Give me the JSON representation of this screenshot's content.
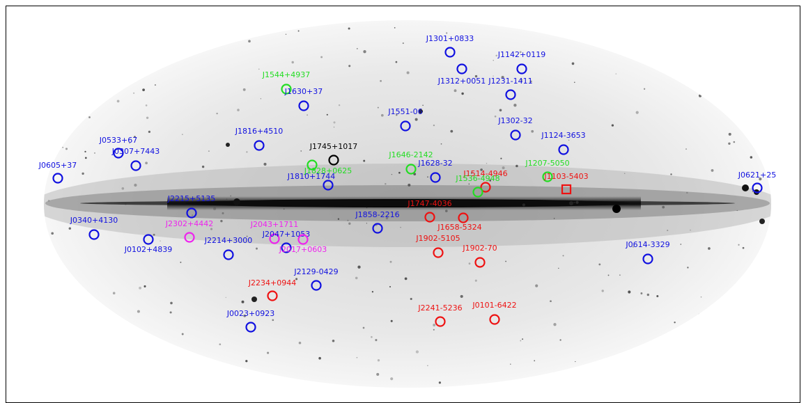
{
  "image": {
    "projection": "aitoff-allsky",
    "description_colors": {
      "blue": "#1010e0",
      "green": "#22dd22",
      "red": "#ee1111",
      "magenta": "#ee22ee",
      "black": "#000000"
    }
  },
  "sources": [
    {
      "id": "s1",
      "label": "J1301+0833",
      "color": "blue"
    },
    {
      "id": "s2",
      "label": "J1142+0119",
      "color": "blue"
    },
    {
      "id": "s3",
      "label": "J1312+0051",
      "color": "blue"
    },
    {
      "id": "s4",
      "label": "J1231-1411",
      "color": "blue"
    },
    {
      "id": "s5",
      "label": "J1544+4937",
      "color": "green"
    },
    {
      "id": "s6",
      "label": "J1630+37",
      "color": "blue"
    },
    {
      "id": "s7",
      "label": "J1551-06",
      "color": "blue"
    },
    {
      "id": "s8",
      "label": "J1302-32",
      "color": "blue"
    },
    {
      "id": "s9",
      "label": "J1816+4510",
      "color": "blue"
    },
    {
      "id": "s10",
      "label": "J0533+67",
      "color": "blue"
    },
    {
      "id": "s11",
      "label": "J0307+7443",
      "color": "blue"
    },
    {
      "id": "s12",
      "label": "J1124-3653",
      "color": "blue"
    },
    {
      "id": "s13",
      "label": "J1745+1017",
      "color": "black"
    },
    {
      "id": "s14",
      "label": "J1646-2142",
      "color": "green"
    },
    {
      "id": "s15",
      "label": "J1628-32",
      "color": "blue"
    },
    {
      "id": "s16",
      "label": "J1207-5050",
      "color": "green"
    },
    {
      "id": "s17",
      "label": "J0605+37",
      "color": "blue"
    },
    {
      "id": "s18",
      "label": "J1828+0625",
      "color": "green"
    },
    {
      "id": "s19",
      "label": "J1810+1744",
      "color": "blue"
    },
    {
      "id": "s20",
      "label": "J1514-4946",
      "color": "red"
    },
    {
      "id": "s21",
      "label": "J1103-5403",
      "color": "red"
    },
    {
      "id": "s22",
      "label": "J1536-4948",
      "color": "green"
    },
    {
      "id": "s23",
      "label": "J0621+25",
      "color": "blue"
    },
    {
      "id": "s24",
      "label": "J2215+5135",
      "color": "blue"
    },
    {
      "id": "s25",
      "label": "J1747-4036",
      "color": "red"
    },
    {
      "id": "s26",
      "label": "J0340+4130",
      "color": "blue"
    },
    {
      "id": "s27",
      "label": "J2302+4442",
      "color": "magenta"
    },
    {
      "id": "s28",
      "label": "J2043+1711",
      "color": "magenta"
    },
    {
      "id": "s29",
      "label": "J1858-2216",
      "color": "blue"
    },
    {
      "id": "s30",
      "label": "J1658-5324",
      "color": "red"
    },
    {
      "id": "s31",
      "label": "J2047+1053",
      "color": "blue"
    },
    {
      "id": "s32",
      "label": "J0102+4839",
      "color": "blue"
    },
    {
      "id": "s33",
      "label": "J2214+3000",
      "color": "blue"
    },
    {
      "id": "s34",
      "label": "J2017+0603",
      "color": "magenta"
    },
    {
      "id": "s35",
      "label": "J1902-5105",
      "color": "red"
    },
    {
      "id": "s36",
      "label": "J1902-70",
      "color": "red"
    },
    {
      "id": "s37",
      "label": "J0614-3329",
      "color": "blue"
    },
    {
      "id": "s38",
      "label": "J2129-0429",
      "color": "blue"
    },
    {
      "id": "s39",
      "label": "J2234+0944",
      "color": "red"
    },
    {
      "id": "s40",
      "label": "J2241-5236",
      "color": "red"
    },
    {
      "id": "s41",
      "label": "J0101-6422",
      "color": "red"
    },
    {
      "id": "s42",
      "label": "J0023+0923",
      "color": "blue"
    }
  ]
}
